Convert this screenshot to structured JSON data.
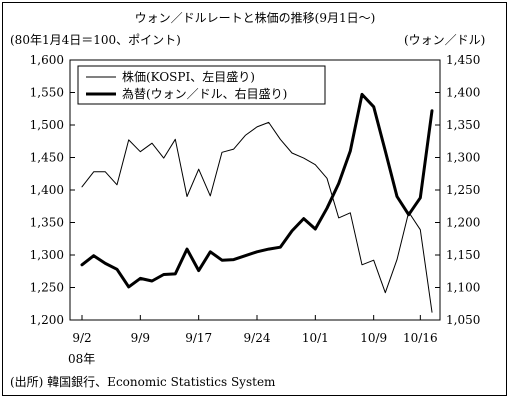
{
  "chart_data": {
    "type": "line",
    "title": "ウォン／ドルレートと株価の推移(9月1日～)",
    "left_axis": {
      "label": "(80年1月4日＝100、ポイント)",
      "ylim": [
        1200,
        1600
      ],
      "ticks": [
        "1,200",
        "1,250",
        "1,300",
        "1,350",
        "1,400",
        "1,450",
        "1,500",
        "1,550",
        "1,600"
      ]
    },
    "right_axis": {
      "label": "(ウォン／ドル)",
      "ylim": [
        1050,
        1450
      ],
      "ticks": [
        "1,050",
        "1,100",
        "1,150",
        "1,200",
        "1,250",
        "1,300",
        "1,350",
        "1,400",
        "1,450"
      ]
    },
    "x_tick_labels": [
      "9/2",
      "9/9",
      "9/17",
      "9/24",
      "10/1",
      "10/9",
      "10/16"
    ],
    "x_tick_index": [
      0,
      5,
      10,
      15,
      20,
      25,
      29
    ],
    "x_sublabel": "08年",
    "source": "(出所) 韓国銀行、Economic Statistics System",
    "legend_position": "top-left",
    "series": [
      {
        "name": "株価(KOSPI、左目盛り)",
        "axis": "left",
        "style": "thin",
        "values": [
          1405,
          1428,
          1428,
          1408,
          1477,
          1459,
          1472,
          1449,
          1478,
          1390,
          1432,
          1391,
          1458,
          1463,
          1484,
          1497,
          1504,
          1478,
          1457,
          1449,
          1439,
          1418,
          1357,
          1365,
          1285,
          1292,
          1242,
          1293,
          1366,
          1339,
          1212
        ]
      },
      {
        "name": "為替(ウォン／ドル、右目盛り)",
        "axis": "right",
        "style": "bold",
        "values": [
          1135,
          1149,
          1137,
          1128,
          1101,
          1114,
          1110,
          1120,
          1121,
          1159,
          1126,
          1155,
          1142,
          1143,
          1149,
          1155,
          1159,
          1162,
          1187,
          1206,
          1190,
          1222,
          1260,
          1310,
          1397,
          1378,
          1310,
          1240,
          1212,
          1238,
          1372
        ]
      }
    ]
  }
}
